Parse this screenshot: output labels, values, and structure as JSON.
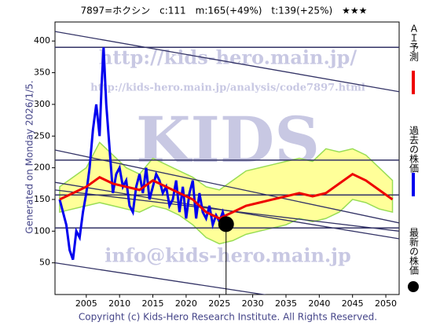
{
  "chart_data": {
    "type": "line",
    "title": "7897=ホクシン　c:111　m:165(+49%)　t:139(+25%)　★★★",
    "side_label": "Generated on Monday 2026/1/5.",
    "footer": "Copyright (c) Kids-Hero Research Institute. All Rights Reserved.",
    "watermarks": [
      "http://kids-hero.main.jp/",
      "http://kids-hero.main.jp/analysis/code7897.html",
      "KIDS",
      "info@kids-hero.main.jp"
    ],
    "xlim": [
      2000.3,
      2052
    ],
    "ylim": [
      0,
      430
    ],
    "xticks": [
      2005,
      2010,
      2015,
      2020,
      2025,
      2030,
      2035,
      2040,
      2045,
      2050
    ],
    "yticks": [
      50,
      100,
      150,
      200,
      250,
      300,
      350,
      400
    ],
    "series": [
      {
        "name": "過去の株価",
        "color": "#0000ee",
        "x": [
          2001,
          2002,
          2002.5,
          2003,
          2003.5,
          2004,
          2004.5,
          2005,
          2005.5,
          2006,
          2006.5,
          2007,
          2007.3,
          2007.6,
          2008,
          2008.5,
          2009,
          2009.5,
          2010,
          2010.5,
          2011,
          2011.5,
          2012,
          2012.5,
          2013,
          2013.5,
          2014,
          2014.5,
          2015,
          2015.5,
          2016,
          2016.5,
          2017,
          2017.5,
          2018,
          2018.5,
          2019,
          2019.5,
          2020,
          2020.5,
          2021,
          2021.5,
          2022,
          2022.5,
          2023,
          2023.5,
          2024,
          2024.5,
          2025,
          2025.5,
          2026
        ],
        "values": [
          150,
          110,
          70,
          55,
          100,
          90,
          130,
          160,
          200,
          260,
          300,
          250,
          330,
          390,
          300,
          230,
          160,
          190,
          200,
          170,
          180,
          140,
          130,
          170,
          190,
          160,
          200,
          150,
          170,
          190,
          180,
          160,
          170,
          140,
          150,
          180,
          130,
          170,
          120,
          160,
          180,
          120,
          160,
          130,
          120,
          140,
          110,
          125,
          115,
          130,
          111
        ]
      },
      {
        "name": "ＡＩ予測",
        "color": "#ee0000",
        "x": [
          2001,
          2003,
          2005,
          2007,
          2009,
          2011,
          2013,
          2015,
          2017,
          2019,
          2021,
          2023,
          2025,
          2027,
          2029,
          2031,
          2033,
          2035,
          2037,
          2039,
          2041,
          2043,
          2045,
          2047,
          2049,
          2051
        ],
        "values": [
          150,
          160,
          170,
          185,
          175,
          170,
          165,
          180,
          170,
          160,
          150,
          130,
          120,
          130,
          140,
          145,
          150,
          155,
          160,
          155,
          160,
          175,
          190,
          180,
          165,
          150
        ]
      }
    ],
    "band": {
      "color": "#99dd55",
      "x": [
        2001,
        2003,
        2005,
        2007,
        2009,
        2011,
        2013,
        2015,
        2017,
        2019,
        2021,
        2023,
        2025,
        2027,
        2029,
        2031,
        2033,
        2035,
        2037,
        2039,
        2041,
        2043,
        2045,
        2047,
        2049,
        2051
      ],
      "upper": [
        170,
        185,
        200,
        240,
        220,
        200,
        190,
        215,
        205,
        195,
        185,
        170,
        165,
        180,
        195,
        200,
        205,
        210,
        215,
        210,
        230,
        225,
        230,
        220,
        200,
        180
      ],
      "lower": [
        130,
        135,
        140,
        145,
        140,
        135,
        130,
        140,
        135,
        125,
        110,
        90,
        80,
        85,
        95,
        100,
        105,
        110,
        120,
        115,
        120,
        130,
        150,
        145,
        135,
        130
      ]
    },
    "hlines": [
      390,
      212,
      157,
      105
    ],
    "trendlines": [
      [
        2000.3,
        415,
        2052,
        320
      ],
      [
        2000.3,
        228,
        2052,
        113
      ],
      [
        2000.3,
        177,
        2052,
        88
      ],
      [
        2000.3,
        165,
        2052,
        100
      ],
      [
        2000.3,
        50,
        2036,
        -7
      ]
    ],
    "latest": {
      "name": "最新の株価",
      "x": 2026,
      "value": 111,
      "color": "#000000"
    }
  }
}
